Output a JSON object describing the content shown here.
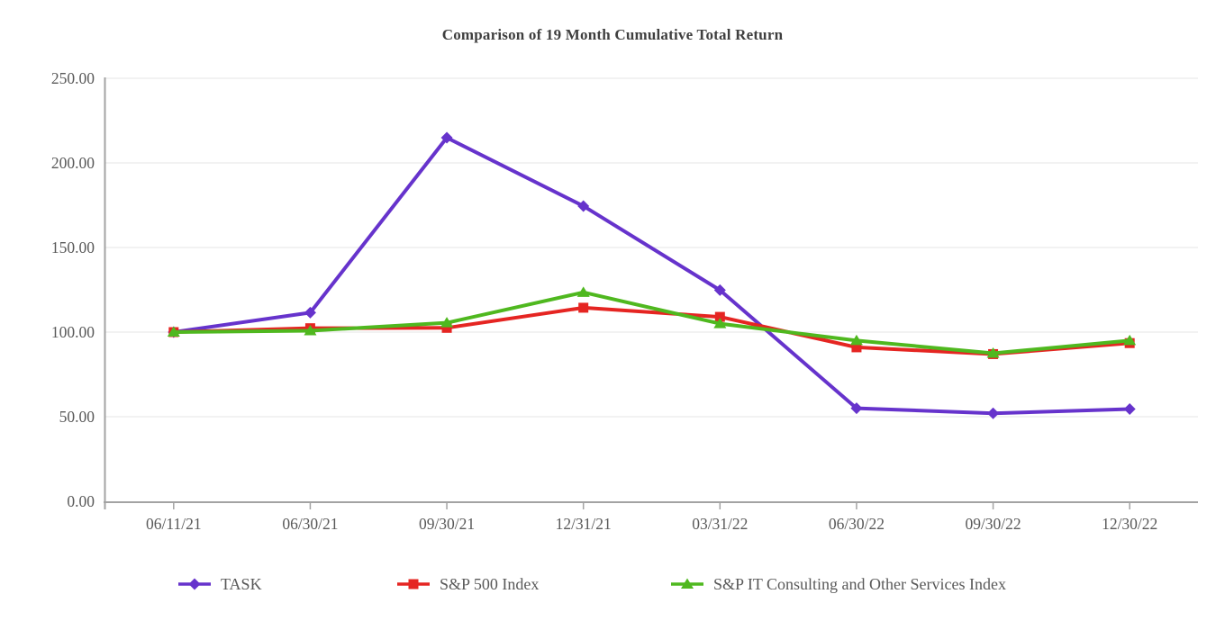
{
  "title": "Comparison of 19 Month Cumulative Total Return",
  "chart_data": {
    "type": "line",
    "title": "Comparison of 19 Month Cumulative Total Return",
    "categories": [
      "06/11/21",
      "06/30/21",
      "09/30/21",
      "12/31/21",
      "03/31/22",
      "06/30/22",
      "09/30/22",
      "12/30/22"
    ],
    "series": [
      {
        "name": "TASK",
        "marker": "diamond",
        "color": "#6633CC",
        "values": [
          100.0,
          111.5,
          214.9,
          174.5,
          124.8,
          55.0,
          52.0,
          54.5
        ]
      },
      {
        "name": "S&P 500 Index",
        "marker": "square",
        "color": "#E52522",
        "values": [
          100.0,
          102.3,
          102.5,
          114.4,
          109.0,
          91.0,
          87.0,
          93.5
        ]
      },
      {
        "name": "S&P IT Consulting and Other Services Index",
        "marker": "triangle",
        "color": "#4FB81F",
        "values": [
          100.0,
          100.8,
          105.5,
          123.5,
          105.0,
          95.0,
          87.5,
          95.0
        ]
      }
    ],
    "xlabel": "",
    "ylabel": "",
    "ylim": [
      0,
      250
    ],
    "ytick_step": 50,
    "ytick_labels": [
      "0.00",
      "50.00",
      "100.00",
      "150.00",
      "200.00",
      "250.00"
    ],
    "grid": "horizontal",
    "legend_position": "bottom"
  },
  "style": {
    "axis_text_color": "#595959",
    "title_text_color": "#3f3f3f",
    "legend_text_color": "#595959",
    "axis_line_color": "#A3A3A3",
    "gridline_color": "#E4E4E4",
    "background_color": "#FFFFFF"
  }
}
